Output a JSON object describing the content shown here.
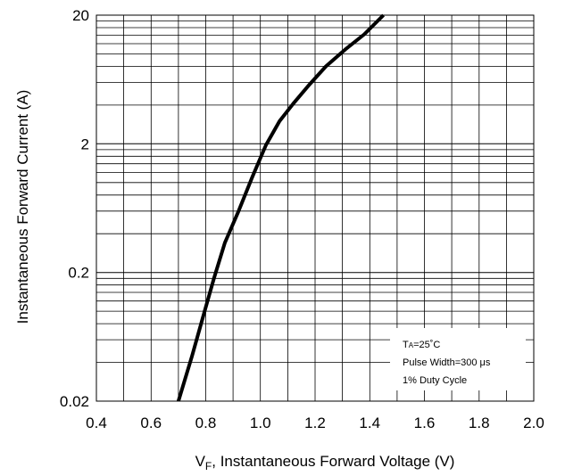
{
  "chart_data": {
    "type": "line",
    "xlabel_sub": "F",
    "xlabel_main": "V",
    "xlabel_rest": ", Instantaneous  Forward Voltage (V)",
    "ylabel": "Instantaneous  Forward Current (A)",
    "xlim": [
      0.4,
      2.0
    ],
    "ylim": [
      0.02,
      20
    ],
    "y_scale": "log",
    "x_ticks": [
      "0.4",
      "0.6",
      "0.8",
      "1.0",
      "1.2",
      "1.4",
      "1.6",
      "1.8",
      "2.0"
    ],
    "x_tick_values": [
      0.4,
      0.6,
      0.8,
      1.0,
      1.2,
      1.4,
      1.6,
      1.8,
      2.0
    ],
    "y_ticks": [
      "0.02",
      "0.2",
      "2",
      "20"
    ],
    "y_tick_values": [
      0.02,
      0.2,
      2,
      20
    ],
    "grid": true,
    "series": [
      {
        "x": [
          0.7,
          0.75,
          0.79,
          0.83,
          0.87,
          0.92,
          0.97,
          1.02,
          1.07,
          1.12,
          1.18,
          1.24,
          1.31,
          1.38,
          1.45
        ],
        "y": [
          0.02,
          0.045,
          0.09,
          0.18,
          0.34,
          0.6,
          1.1,
          1.95,
          3.0,
          4.1,
          5.8,
          8.0,
          10.8,
          14.2,
          20
        ]
      }
    ],
    "legend_lines": [
      "T",
      "A",
      "=25˚C",
      "Pulse Width=300 μs",
      "1% Duty Cycle"
    ]
  }
}
